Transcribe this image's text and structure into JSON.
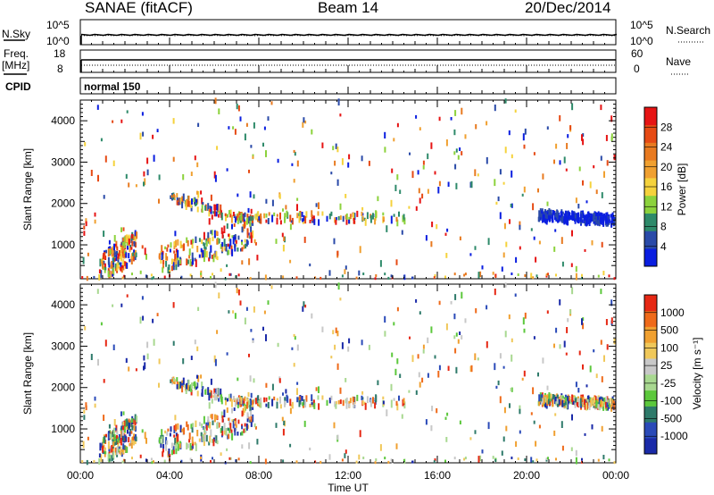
{
  "header": {
    "title": "SANAE (fitACF)",
    "beam": "Beam 14",
    "date": "20/Dec/2014"
  },
  "panels": {
    "nsky": {
      "left_label": "N.Sky",
      "right_label": "N.Search",
      "left_ticks": [
        "10^5",
        "10^0"
      ],
      "right_ticks": [
        "10^5",
        "10^0"
      ]
    },
    "freq": {
      "left_label": "Freq.",
      "left_unit": "[MHz]",
      "left_ticks": [
        "18",
        "8"
      ],
      "right_label": "Nave",
      "right_ticks": [
        "60",
        "0"
      ]
    },
    "cpid": {
      "label": "CPID",
      "mode": "normal 150"
    }
  },
  "axes": {
    "ylabel": "Slant Range [km]",
    "xlabel": "Time UT",
    "y_ticks": [
      "1000",
      "2000",
      "3000",
      "4000"
    ],
    "x_ticks": [
      "00:00",
      "04:00",
      "08:00",
      "12:00",
      "16:00",
      "20:00",
      "00:00"
    ]
  },
  "colorbars": {
    "power": {
      "label": "Power [dB]",
      "ticks": [
        "4",
        "8",
        "12",
        "16",
        "20",
        "24",
        "28"
      ],
      "colors": [
        "#0a1ee0",
        "#2a4aa8",
        "#2e8a6a",
        "#8cd23c",
        "#f5d23c",
        "#f0a030",
        "#e87a20",
        "#e64a14",
        "#e61414"
      ]
    },
    "velocity": {
      "label": "Velocity [m s⁻¹]",
      "ticks": [
        "1000",
        "500",
        "100",
        "25",
        "-25",
        "-100",
        "-500",
        "-1000"
      ],
      "colors": [
        "#1a2aa8",
        "#2a4ab8",
        "#2e7a6a",
        "#5cc83c",
        "#a8d890",
        "#c8c8c8",
        "#f0c85a",
        "#f0a030",
        "#ef6a1a",
        "#e62814"
      ]
    }
  },
  "chart_data": {
    "type": "heatmap",
    "title": "SANAE (fitACF)",
    "x_range_hours": [
      0,
      24
    ],
    "y_range_km": [
      180,
      4500
    ],
    "features": [
      {
        "name": "echo-band-1",
        "t_start": 4.0,
        "t_end": 7.8,
        "range_start_km": 2150,
        "range_end_km": 1550
      },
      {
        "name": "echo-band-2",
        "t_start": 7.0,
        "t_end": 14.5,
        "range_start_km": 1650,
        "range_end_km": 1650
      },
      {
        "name": "echo-band-3",
        "t_start": 20.5,
        "t_end": 24.0,
        "range_start_km": 1700,
        "range_end_km": 1600
      },
      {
        "name": "near-range-cluster-1",
        "t_start": 0.8,
        "t_end": 2.5,
        "range_start_km": 400,
        "range_end_km": 1000
      },
      {
        "name": "near-range-cluster-2",
        "t_start": 3.5,
        "t_end": 7.8,
        "range_start_km": 600,
        "range_end_km": 1300
      }
    ]
  }
}
